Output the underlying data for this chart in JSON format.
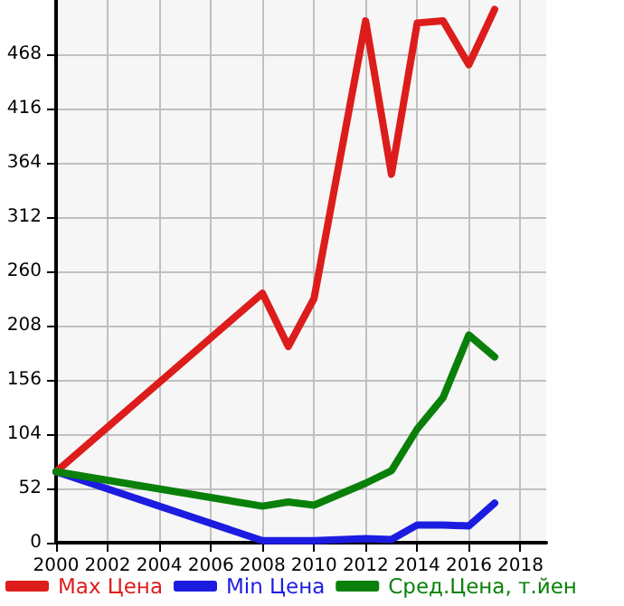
{
  "chart_data": {
    "type": "line",
    "x": [
      2000,
      2008,
      2009,
      2010,
      2012,
      2013,
      2014,
      2015,
      2016,
      2017
    ],
    "series": [
      {
        "name": "Max Цена",
        "color": "#dd1c1c",
        "values": [
          68,
          239,
          188,
          234,
          500,
          353,
          498,
          500,
          458,
          511
        ]
      },
      {
        "name": "Min Цена",
        "color": "#1c1ce0",
        "values": [
          68,
          2,
          2,
          2,
          4,
          3,
          17,
          17,
          16,
          38
        ]
      },
      {
        "name": "Сред.Цена, т.йен",
        "color": "#0a800a",
        "values": [
          68,
          35,
          39,
          36,
          57,
          69,
          109,
          139,
          199,
          178
        ]
      }
    ],
    "xlim": [
      2000,
      2019
    ],
    "xticks": [
      2000,
      2002,
      2004,
      2006,
      2008,
      2010,
      2012,
      2014,
      2016,
      2018
    ],
    "ylim": [
      0,
      520
    ],
    "yticks": [
      0,
      52,
      104,
      156,
      208,
      260,
      312,
      364,
      416,
      468
    ],
    "grid": true,
    "legend": "bottom",
    "marker": "none",
    "line_style": "solid"
  }
}
